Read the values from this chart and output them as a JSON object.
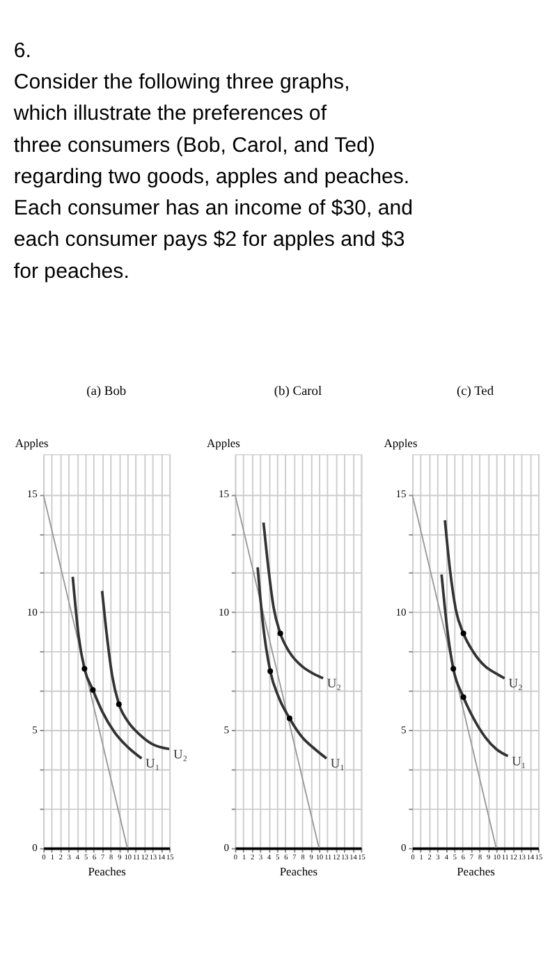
{
  "chart_data": [
    {
      "type": "line",
      "title": "(a) Bob",
      "xlabel": "Peaches",
      "ylabel": "Apples",
      "annotations": [
        "6.",
        "Consider the following three graphs, which illustrate the preferences of three consumers (Bob, Carol, and Ted) regarding two goods, apples and peaches. Each consumer has an income of $30, and each consumer pays $2 for apples and $3 for peaches."
      ],
      "xlim": [
        0,
        15
      ],
      "ylim": [
        0,
        16.7
      ],
      "xticks": [
        0,
        1,
        2,
        3,
        4,
        5,
        6,
        7,
        8,
        9,
        10,
        11,
        12,
        13,
        14,
        15
      ],
      "yticks": [
        0,
        {
          "value": 1.67,
          "label": null
        },
        {
          "value": 3.33,
          "label": null
        },
        5,
        {
          "value": 6.67,
          "label": null
        },
        {
          "value": 8.33,
          "label": null
        },
        10,
        {
          "value": 11.67,
          "label": null
        },
        {
          "value": 13.33,
          "label": null
        },
        15
      ],
      "grid": true,
      "series": [
        {
          "color": "#999999",
          "x": [
            0,
            10
          ],
          "values": [
            15,
            0
          ]
        },
        {
          "name": "U₁",
          "color": "#333333",
          "x": [
            3.5,
            4.2,
            4.9,
            5.9,
            7,
            8.5,
            10,
            11.7
          ],
          "values": [
            11.5,
            9,
            7.6,
            6.7,
            5.8,
            4.9,
            4.3,
            3.8
          ]
        },
        {
          "name": "U₂",
          "color": "#333333",
          "x": [
            7,
            7.6,
            8.2,
            9,
            10,
            11.5,
            13,
            15
          ],
          "values": [
            10.9,
            8.9,
            7.3,
            6.1,
            5.4,
            4.8,
            4.4,
            4.2
          ]
        },
        {
          "type": "scatter",
          "color": "#000000",
          "x": [
            4.9,
            5.9,
            9
          ],
          "values": [
            7.6,
            6.7,
            6.1
          ]
        }
      ]
    },
    {
      "type": "line",
      "title": "(b) Carol",
      "xlabel": "Peaches",
      "ylabel": "Apples",
      "xlim": [
        0,
        15
      ],
      "ylim": [
        0,
        16.7
      ],
      "xticks": [
        0,
        1,
        2,
        3,
        4,
        5,
        6,
        7,
        8,
        9,
        10,
        11,
        12,
        13,
        14,
        15
      ],
      "yticks": [
        0,
        {
          "value": 1.67,
          "label": null
        },
        {
          "value": 3.33,
          "label": null
        },
        5,
        {
          "value": 6.67,
          "label": null
        },
        {
          "value": 8.33,
          "label": null
        },
        10,
        {
          "value": 11.67,
          "label": null
        },
        {
          "value": 13.33,
          "label": null
        },
        15
      ],
      "grid": true,
      "series": [
        {
          "color": "#999999",
          "x": [
            0,
            10
          ],
          "values": [
            15,
            0
          ]
        },
        {
          "name": "U₁",
          "color": "#333333",
          "x": [
            2.7,
            3.3,
            4.2,
            5.2,
            6.5,
            8,
            9.5,
            10.9
          ],
          "values": [
            11.9,
            9.6,
            7.5,
            6.4,
            5.5,
            4.7,
            4.2,
            3.8
          ]
        },
        {
          "name": "U₂",
          "color": "#333333",
          "x": [
            3.4,
            4,
            4.6,
            5.4,
            6.5,
            8,
            9.3,
            10.5
          ],
          "values": [
            13.8,
            11.8,
            10.2,
            9.1,
            8.3,
            7.7,
            7.4,
            7.2
          ]
        },
        {
          "type": "scatter",
          "color": "#000000",
          "x": [
            4.2,
            5.4,
            6.5
          ],
          "values": [
            7.5,
            9.1,
            5.5
          ]
        }
      ]
    },
    {
      "type": "line",
      "title": "(c) Ted",
      "xlabel": "Peaches",
      "ylabel": "Apples",
      "xlim": [
        0,
        15
      ],
      "ylim": [
        0,
        16.7
      ],
      "xticks": [
        0,
        1,
        2,
        3,
        4,
        5,
        6,
        7,
        8,
        9,
        10,
        11,
        12,
        13,
        14,
        15
      ],
      "yticks": [
        0,
        {
          "value": 1.67,
          "label": null
        },
        {
          "value": 3.33,
          "label": null
        },
        5,
        {
          "value": 6.67,
          "label": null
        },
        {
          "value": 8.33,
          "label": null
        },
        10,
        {
          "value": 11.67,
          "label": null
        },
        {
          "value": 13.33,
          "label": null
        },
        15
      ],
      "grid": true,
      "series": [
        {
          "color": "#999999",
          "x": [
            0,
            10
          ],
          "values": [
            15,
            0
          ]
        },
        {
          "name": "U₁",
          "color": "#333333",
          "x": [
            3.5,
            4.2,
            4.9,
            6.1,
            7.3,
            8.7,
            10,
            11.4
          ],
          "values": [
            11.6,
            9.2,
            7.6,
            6.4,
            5.5,
            4.7,
            4.2,
            3.9
          ]
        },
        {
          "name": "U₂",
          "color": "#333333",
          "x": [
            3.9,
            4.5,
            5.2,
            6.1,
            7.3,
            8.7,
            10,
            11
          ],
          "values": [
            13.9,
            11.8,
            10.1,
            9.1,
            8.3,
            7.7,
            7.4,
            7.2
          ]
        },
        {
          "type": "scatter",
          "color": "#000000",
          "x": [
            4.9,
            6.1,
            6.1
          ],
          "values": [
            7.6,
            6.4,
            9.1
          ]
        }
      ]
    }
  ]
}
